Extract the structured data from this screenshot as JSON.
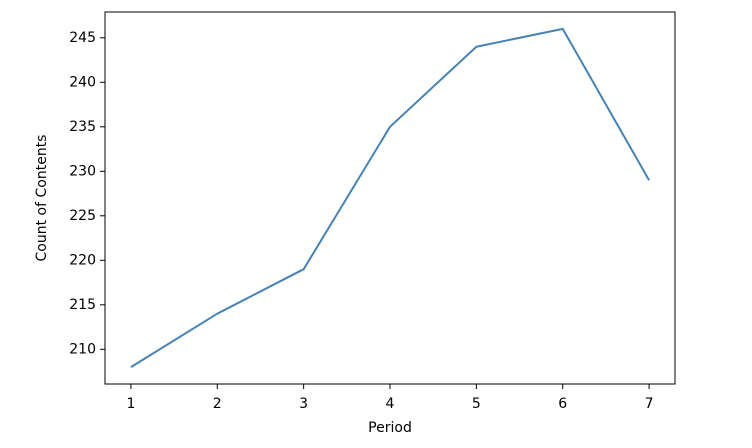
{
  "chart_data": {
    "type": "line",
    "xlabel": "Period",
    "ylabel": "Count of Contents",
    "x": [
      1,
      2,
      3,
      4,
      5,
      6,
      7
    ],
    "series": [
      {
        "color": "#4682b4",
        "values": [
          208,
          214,
          219,
          235,
          244,
          246,
          229
        ]
      }
    ],
    "xlim": [
      0.7,
      7.3
    ],
    "xticks": [
      1,
      2,
      3,
      4,
      5,
      6,
      7
    ],
    "ylim": [
      206.1,
      247.9
    ],
    "yticks": [
      210,
      215,
      220,
      225,
      230,
      235,
      240,
      245
    ],
    "grid": false
  }
}
